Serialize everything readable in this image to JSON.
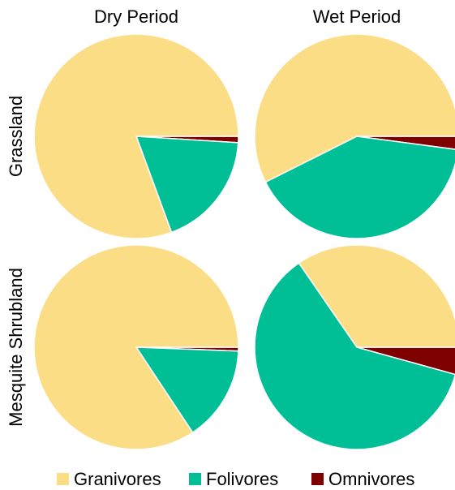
{
  "chart_data": {
    "type": "pie",
    "columns": [
      "Dry Period",
      "Wet Period"
    ],
    "rows": [
      "Grassland",
      "Mesquite Shrubland"
    ],
    "categories": [
      "Granivores",
      "Folivores",
      "Omnivores"
    ],
    "colors": {
      "Granivores": "#fbdd85",
      "Folivores": "#00bf96",
      "Omnivores": "#7f0000"
    },
    "pies": [
      {
        "row": "Grassland",
        "column": "Dry Period",
        "values": {
          "Granivores": 80.6,
          "Folivores": 18.4,
          "Omnivores": 1.0
        }
      },
      {
        "row": "Grassland",
        "column": "Wet Period",
        "values": {
          "Granivores": 57.4,
          "Folivores": 40.5,
          "Omnivores": 2.1
        }
      },
      {
        "row": "Mesquite Shrubland",
        "column": "Dry Period",
        "values": {
          "Granivores": 84.3,
          "Folivores": 15.1,
          "Omnivores": 0.6
        }
      },
      {
        "row": "Mesquite Shrubland",
        "column": "Wet Period",
        "values": {
          "Granivores": 34.6,
          "Folivores": 61.1,
          "Omnivores": 4.3
        }
      }
    ],
    "legend_position": "bottom",
    "start_direction": "east, slices drawn clockwise: Omnivores, Folivores, Granivores"
  }
}
